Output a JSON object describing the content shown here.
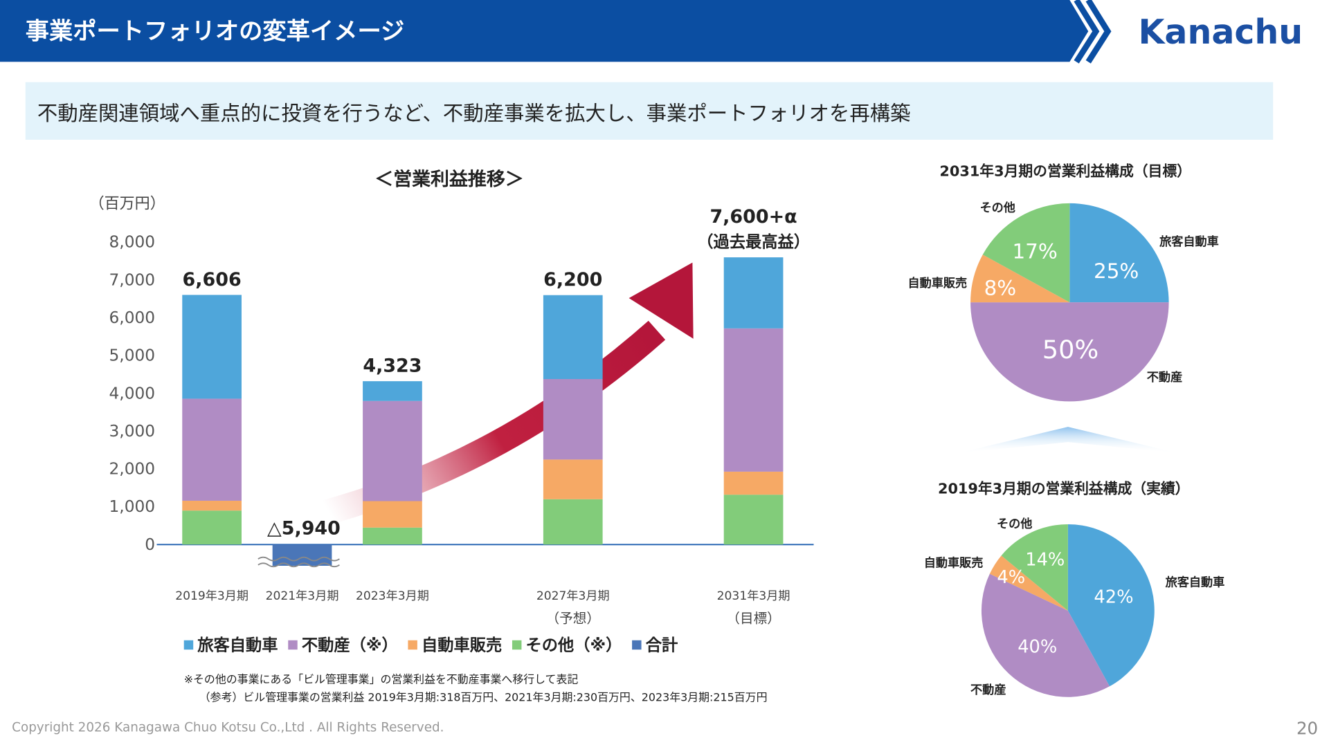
{
  "header": {
    "title": "事業ポートフォリオの変革イメージ",
    "logo": "Kanachu"
  },
  "banner": "不動産関連領域へ重点的に投資を行うなど、不動産事業を拡大し、事業ポートフォリオを再構築",
  "chart_data": [
    {
      "type": "bar",
      "title": "＜営業利益推移＞",
      "y_label": "（百万円）",
      "categories": [
        "2019年3月期",
        "2021年3月期",
        "2023年3月期",
        null,
        "2027年3月期",
        null,
        "2031年3月期"
      ],
      "category_notes": [
        null,
        null,
        null,
        null,
        "（予想）",
        null,
        "（目標）"
      ],
      "series": [
        {
          "name": "旅客自動車",
          "color": "#4fa6da",
          "values": [
            2746,
            null,
            523,
            null,
            2220,
            null,
            1880
          ]
        },
        {
          "name": "不動産（※）",
          "color": "#b08cc4",
          "values": [
            2700,
            null,
            2650,
            null,
            2130,
            null,
            3790
          ]
        },
        {
          "name": "自動車販売",
          "color": "#f6a965",
          "values": [
            260,
            null,
            700,
            null,
            1050,
            null,
            610
          ]
        },
        {
          "name": "その他（※）",
          "color": "#82cc7a",
          "values": [
            900,
            null,
            450,
            null,
            1200,
            null,
            1320
          ]
        },
        {
          "name": "合計",
          "color": "#4a76b8",
          "values": [
            6606,
            -5940,
            4323,
            null,
            6200,
            null,
            7600
          ],
          "value_labels": [
            "6,606",
            "△5,940",
            "4,323",
            null,
            "6,200",
            null,
            "7,600+α"
          ]
        }
      ],
      "annotation": "（過去最高益）",
      "ylim": [
        0,
        8000
      ],
      "yticks": [
        0,
        {
          "value": 1000,
          "label": "1,000"
        },
        {
          "value": 2000,
          "label": "2,000"
        },
        {
          "value": 3000,
          "label": "3,000"
        },
        {
          "value": 4000,
          "label": "4,000"
        },
        {
          "value": 5000,
          "label": "5,000"
        },
        {
          "value": 6000,
          "label": "6,000"
        },
        {
          "value": 7000,
          "label": "7,000"
        },
        {
          "value": 8000,
          "label": "8,000"
        }
      ],
      "grid": false
    },
    {
      "type": "pie",
      "title": "2031年3月期の営業利益構成（目標）",
      "categories": [
        "旅客自動車",
        "不動産",
        "自動車販売",
        "その他"
      ],
      "values": [
        25,
        50,
        8,
        17
      ],
      "value_labels": [
        "25%",
        "50%",
        "8%",
        "17%"
      ],
      "colors": [
        "#4fa6da",
        "#b08cc4",
        "#f6a965",
        "#82cc7a"
      ]
    },
    {
      "type": "pie",
      "title": "2019年3月期の営業利益構成（実績）",
      "categories": [
        "旅客自動車",
        "不動産",
        "自動車販売",
        "その他"
      ],
      "values": [
        42,
        40,
        4,
        14
      ],
      "value_labels": [
        "42%",
        "40%",
        "4%",
        "14%"
      ],
      "colors": [
        "#4fa6da",
        "#b08cc4",
        "#f6a965",
        "#82cc7a"
      ]
    }
  ],
  "notes": [
    "※その他の事業にある「ビル管理事業」の営業利益を不動産事業へ移行して表記",
    "（参考）ビル管理事業の営業利益 2019年3月期:318百万円、2021年3月期:230百万円、2023年3月期:215百万円"
  ],
  "footer": {
    "copyright": "Copyright 2026 Kanagawa Chuo Kotsu Co.,Ltd . All Rights Reserved.",
    "page": "20"
  }
}
